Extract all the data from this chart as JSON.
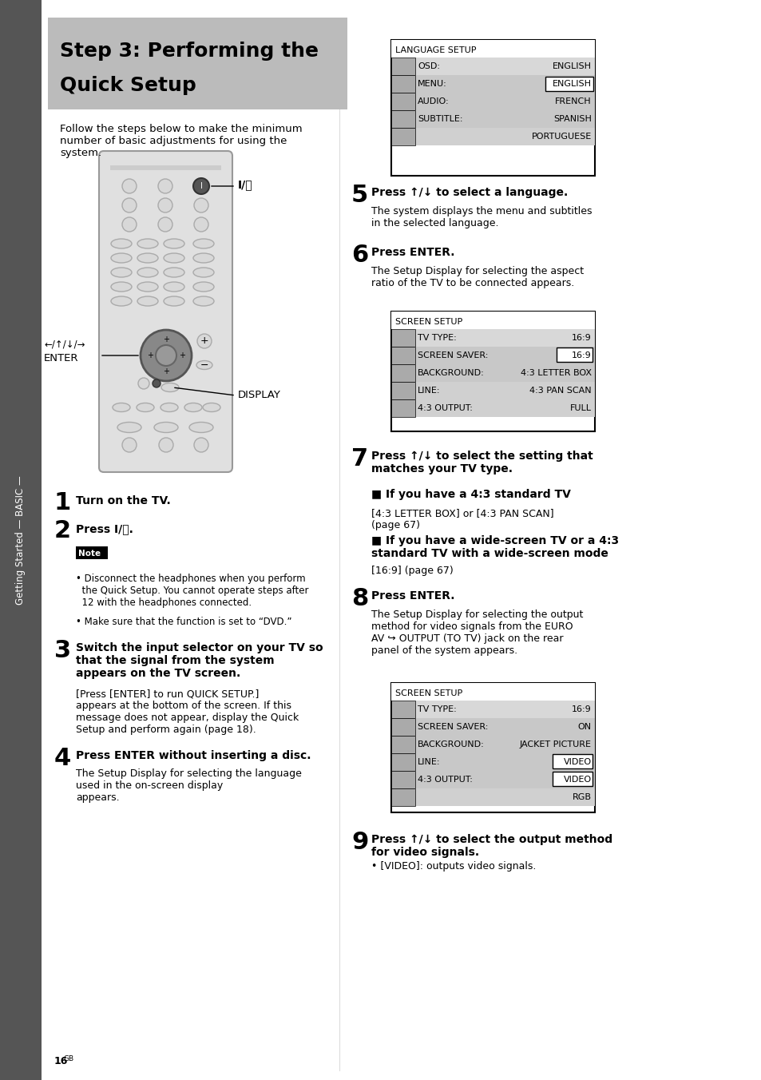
{
  "page_bg": "#ffffff",
  "sidebar_color": "#555555",
  "sidebar_text": "Getting Started — BASIC —",
  "title_bg": "#bbbbbb",
  "title_line1": "Step 3: Performing the",
  "title_line2": "Quick Setup",
  "intro_text": "Follow the steps below to make the minimum\nnumber of basic adjustments for using the\nsystem.",
  "step1_num": "1",
  "step1_text": "Turn on the TV.",
  "step2_num": "2",
  "step2_text": "Press I/⌛.",
  "note_label": "Note",
  "note_bullet1": "• Disconnect the headphones when you perform\n  the Quick Setup. You cannot operate steps after\n  12 with the headphones connected.",
  "note_bullet2": "• Make sure that the function is set to “DVD.”",
  "step3_num": "3",
  "step3_text_bold": "Switch the input selector on your TV so\nthat the signal from the system\nappears on the TV screen.",
  "step3_text_normal": "[Press [ENTER] to run QUICK SETUP.]\nappears at the bottom of the screen. If this\nmessage does not appear, display the Quick\nSetup and perform again (page 18).",
  "step4_num": "4",
  "step4_text_bold": "Press ENTER without inserting a disc.",
  "step4_text_normal": "The Setup Display for selecting the language\nused in the on-screen display\nappears.",
  "step5_num": "5",
  "step5_text_bold": "Press ↑/↓ to select a language.",
  "step5_text_normal": "The system displays the menu and subtitles\nin the selected language.",
  "step6_num": "6",
  "step6_text_bold": "Press ENTER.",
  "step6_text_normal": "The Setup Display for selecting the aspect\nratio of the TV to be connected appears.",
  "step7_num": "7",
  "step7_text_bold": "Press ↑/↓ to select the setting that\nmatches your TV type.",
  "step7_sub1_bold": "■ If you have a 4:3 standard TV",
  "step7_sub1_normal": "[4:3 LETTER BOX] or [4:3 PAN SCAN]\n(page 67)",
  "step7_sub2_bold": "■ If you have a wide-screen TV or a 4:3\nstandard TV with a wide-screen mode",
  "step7_sub2_normal": "[16:9] (page 67)",
  "step8_num": "8",
  "step8_text_bold": "Press ENTER.",
  "step8_text_normal": "The Setup Display for selecting the output\nmethod for video signals from the EURO\nAV ↪ OUTPUT (TO TV) jack on the rear\npanel of the system appears.",
  "step9_num": "9",
  "step9_text_bold": "Press ↑/↓ to select the output method\nfor video signals.",
  "step9_text_normal": "• [VIDEO]: outputs video signals.",
  "lang_setup_title": "LANGUAGE SETUP",
  "lang_rows": [
    {
      "label": "OSD:",
      "value": "ENGLISH",
      "bg": "#d8d8d8"
    },
    {
      "label": "MENU:",
      "value": "ENGLISH",
      "bg": "#c8c8c8",
      "highlight_val": true
    },
    {
      "label": "AUDIO:",
      "value": "FRENCH",
      "bg": "#c8c8c8"
    },
    {
      "label": "SUBTITLE:",
      "value": "SPANISH",
      "bg": "#c8c8c8"
    },
    {
      "label": "",
      "value": "PORTUGUESE",
      "bg": "#d0d0d0"
    }
  ],
  "screen_setup1_title": "SCREEN SETUP",
  "screen1_rows": [
    {
      "label": "TV TYPE:",
      "value": "16:9",
      "bg": "#d8d8d8"
    },
    {
      "label": "SCREEN SAVER:",
      "value": "16:9",
      "bg": "#c8c8c8",
      "highlight_val": true
    },
    {
      "label": "BACKGROUND:",
      "value": "4:3 LETTER BOX",
      "bg": "#c8c8c8"
    },
    {
      "label": "LINE:",
      "value": "4:3 PAN SCAN",
      "bg": "#d0d0d0"
    },
    {
      "label": "4:3 OUTPUT:",
      "value": "FULL",
      "bg": "#d0d0d0"
    }
  ],
  "screen_setup2_title": "SCREEN SETUP",
  "screen2_rows": [
    {
      "label": "TV TYPE:",
      "value": "16:9",
      "bg": "#d8d8d8"
    },
    {
      "label": "SCREEN SAVER:",
      "value": "ON",
      "bg": "#c8c8c8"
    },
    {
      "label": "BACKGROUND:",
      "value": "JACKET PICTURE",
      "bg": "#c8c8c8"
    },
    {
      "label": "LINE:",
      "value": "VIDEO",
      "bg": "#c8c8c8",
      "highlight_val": true
    },
    {
      "label": "4:3 OUTPUT:",
      "value": "VIDEO",
      "bg": "#c8c8c8",
      "highlight_val": true
    },
    {
      "label": "",
      "value": "RGB",
      "bg": "#d0d0d0"
    }
  ],
  "page_num": "16"
}
